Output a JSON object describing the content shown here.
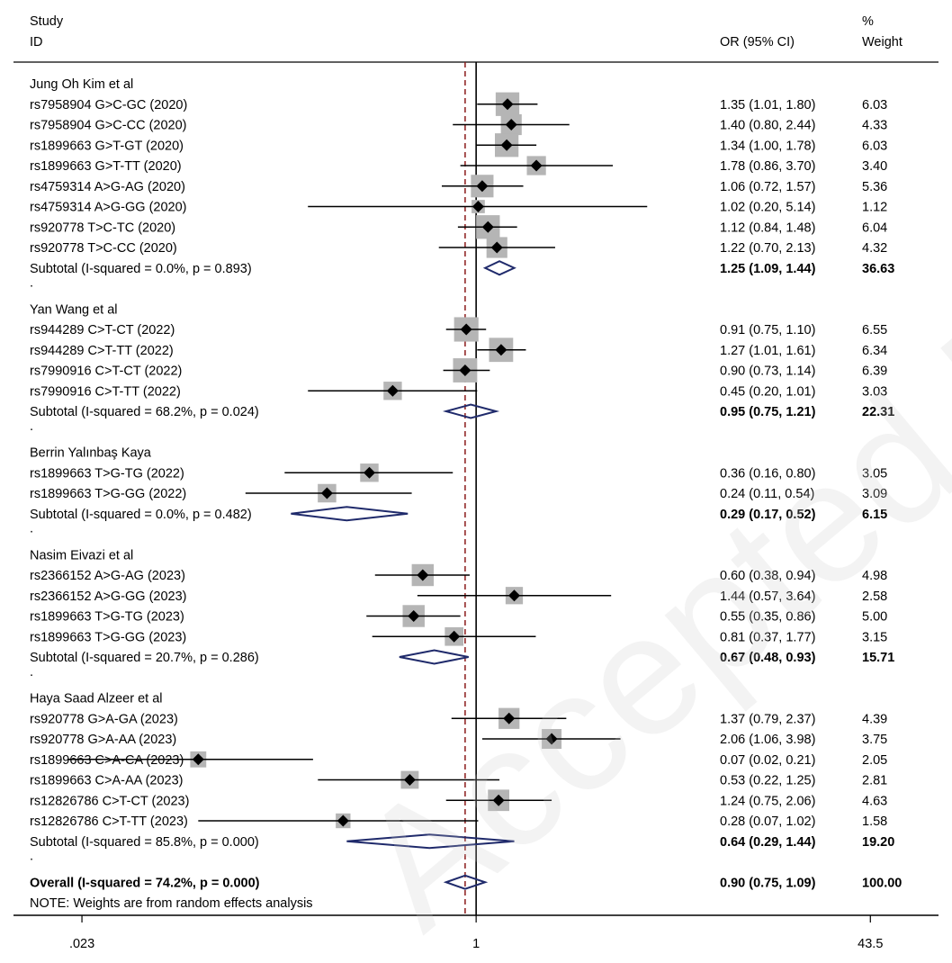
{
  "header": {
    "study_line1": "Study",
    "study_line2": "ID",
    "or_label": "OR (95% CI)",
    "weight_line1": "%",
    "weight_line2": "Weight"
  },
  "note": "NOTE: Weights are from random effects analysis",
  "watermark": "Accepted Manuscript",
  "colors": {
    "diamond": "#1f2a6b",
    "weight_box": "#b5b5b5",
    "null_line": "#000000",
    "overall_line": "#8b1a1a"
  },
  "chart_data": {
    "type": "forest",
    "measure": "OR (95% CI)",
    "x_scale": "log",
    "xlim": [
      0.0105,
      95
    ],
    "x_ticks": [
      {
        "value": 0.023,
        "label": ".023"
      },
      {
        "value": 1,
        "label": "1"
      },
      {
        "value": 43.5,
        "label": "43.5"
      }
    ],
    "null_value": 1,
    "overall_line_value": 0.9,
    "groups": [
      {
        "name": "Jung Oh Kim et al",
        "studies": [
          {
            "label": "rs7958904 G>C-GC (2020)",
            "or": 1.35,
            "lo": 1.01,
            "hi": 1.8,
            "ci_text": "1.35 (1.01, 1.80)",
            "weight": "6.03"
          },
          {
            "label": "rs7958904 G>C-CC (2020)",
            "or": 1.4,
            "lo": 0.8,
            "hi": 2.44,
            "ci_text": "1.40 (0.80, 2.44)",
            "weight": "4.33"
          },
          {
            "label": "rs1899663 G>T-GT (2020)",
            "or": 1.34,
            "lo": 1.0,
            "hi": 1.78,
            "ci_text": "1.34 (1.00, 1.78)",
            "weight": "6.03"
          },
          {
            "label": "rs1899663 G>T-TT (2020)",
            "or": 1.78,
            "lo": 0.86,
            "hi": 3.7,
            "ci_text": "1.78 (0.86, 3.70)",
            "weight": "3.40"
          },
          {
            "label": "rs4759314 A>G-AG (2020)",
            "or": 1.06,
            "lo": 0.72,
            "hi": 1.57,
            "ci_text": "1.06 (0.72, 1.57)",
            "weight": "5.36"
          },
          {
            "label": "rs4759314 A>G-GG (2020)",
            "or": 1.02,
            "lo": 0.2,
            "hi": 5.14,
            "ci_text": "1.02 (0.20, 5.14)",
            "weight": "1.12"
          },
          {
            "label": "rs920778 T>C-TC (2020)",
            "or": 1.12,
            "lo": 0.84,
            "hi": 1.48,
            "ci_text": "1.12 (0.84, 1.48)",
            "weight": "6.04"
          },
          {
            "label": "rs920778 T>C-CC (2020)",
            "or": 1.22,
            "lo": 0.7,
            "hi": 2.13,
            "ci_text": "1.22 (0.70, 2.13)",
            "weight": "4.32"
          }
        ],
        "subtotal": {
          "label": "Subtotal  (I-squared = 0.0%, p = 0.893)",
          "or": 1.25,
          "lo": 1.09,
          "hi": 1.44,
          "ci_text": "1.25 (1.09, 1.44)",
          "weight": "36.63"
        }
      },
      {
        "name": "Yan Wang et al",
        "studies": [
          {
            "label": "rs944289 C>T-CT (2022)",
            "or": 0.91,
            "lo": 0.75,
            "hi": 1.1,
            "ci_text": "0.91 (0.75, 1.10)",
            "weight": "6.55"
          },
          {
            "label": "rs944289 C>T-TT (2022)",
            "or": 1.27,
            "lo": 1.01,
            "hi": 1.61,
            "ci_text": "1.27 (1.01, 1.61)",
            "weight": "6.34"
          },
          {
            "label": "rs7990916 C>T-CT (2022)",
            "or": 0.9,
            "lo": 0.73,
            "hi": 1.14,
            "ci_text": "0.90 (0.73, 1.14)",
            "weight": "6.39"
          },
          {
            "label": "rs7990916 C>T-TT (2022)",
            "or": 0.45,
            "lo": 0.2,
            "hi": 1.01,
            "ci_text": "0.45 (0.20, 1.01)",
            "weight": "3.03"
          }
        ],
        "subtotal": {
          "label": "Subtotal  (I-squared = 68.2%, p = 0.024)",
          "or": 0.95,
          "lo": 0.75,
          "hi": 1.21,
          "ci_text": "0.95 (0.75, 1.21)",
          "weight": "22.31"
        }
      },
      {
        "name": "Berrin Yalınbaş Kaya",
        "studies": [
          {
            "label": "rs1899663 T>G-TG (2022)",
            "or": 0.36,
            "lo": 0.16,
            "hi": 0.8,
            "ci_text": "0.36 (0.16, 0.80)",
            "weight": "3.05"
          },
          {
            "label": "rs1899663 T>G-GG (2022)",
            "or": 0.24,
            "lo": 0.11,
            "hi": 0.54,
            "ci_text": "0.24 (0.11, 0.54)",
            "weight": "3.09"
          }
        ],
        "subtotal": {
          "label": "Subtotal  (I-squared = 0.0%, p = 0.482)",
          "or": 0.29,
          "lo": 0.17,
          "hi": 0.52,
          "ci_text": "0.29 (0.17, 0.52)",
          "weight": "6.15"
        }
      },
      {
        "name": "Nasim Eivazi et al",
        "studies": [
          {
            "label": "rs2366152 A>G-AG (2023)",
            "or": 0.6,
            "lo": 0.38,
            "hi": 0.94,
            "ci_text": "0.60 (0.38, 0.94)",
            "weight": "4.98"
          },
          {
            "label": "rs2366152 A>G-GG (2023)",
            "or": 1.44,
            "lo": 0.57,
            "hi": 3.64,
            "ci_text": "1.44 (0.57, 3.64)",
            "weight": "2.58"
          },
          {
            "label": "rs1899663 T>G-TG (2023)",
            "or": 0.55,
            "lo": 0.35,
            "hi": 0.86,
            "ci_text": "0.55 (0.35, 0.86)",
            "weight": "5.00"
          },
          {
            "label": "rs1899663 T>G-GG (2023)",
            "or": 0.81,
            "lo": 0.37,
            "hi": 1.77,
            "ci_text": "0.81 (0.37, 1.77)",
            "weight": "3.15"
          }
        ],
        "subtotal": {
          "label": "Subtotal  (I-squared = 20.7%, p = 0.286)",
          "or": 0.67,
          "lo": 0.48,
          "hi": 0.93,
          "ci_text": "0.67 (0.48, 0.93)",
          "weight": "15.71"
        }
      },
      {
        "name": "Haya Saad Alzeer et al",
        "studies": [
          {
            "label": "rs920778 G>A-GA (2023)",
            "or": 1.37,
            "lo": 0.79,
            "hi": 2.37,
            "ci_text": "1.37 (0.79, 2.37)",
            "weight": "4.39"
          },
          {
            "label": "rs920778 G>A-AA (2023)",
            "or": 2.06,
            "lo": 1.06,
            "hi": 3.98,
            "ci_text": "2.06 (1.06, 3.98)",
            "weight": "3.75"
          },
          {
            "label": "rs1899663 C>A-CA (2023)",
            "or": 0.07,
            "lo": 0.02,
            "hi": 0.21,
            "ci_text": "0.07 (0.02, 0.21)",
            "weight": "2.05"
          },
          {
            "label": "rs1899663 C>A-AA (2023)",
            "or": 0.53,
            "lo": 0.22,
            "hi": 1.25,
            "ci_text": "0.53 (0.22, 1.25)",
            "weight": "2.81"
          },
          {
            "label": "rs12826786 C>T-CT (2023)",
            "or": 1.24,
            "lo": 0.75,
            "hi": 2.06,
            "ci_text": "1.24 (0.75, 2.06)",
            "weight": "4.63"
          },
          {
            "label": "rs12826786 C>T-TT (2023)",
            "or": 0.28,
            "lo": 0.07,
            "hi": 1.02,
            "ci_text": "0.28 (0.07, 1.02)",
            "weight": "1.58"
          }
        ],
        "subtotal": {
          "label": "Subtotal  (I-squared = 85.8%, p = 0.000)",
          "or": 0.64,
          "lo": 0.29,
          "hi": 1.44,
          "ci_text": "0.64 (0.29, 1.44)",
          "weight": "19.20"
        }
      }
    ],
    "overall": {
      "label": "Overall  (I-squared = 74.2%, p = 0.000)",
      "or": 0.9,
      "lo": 0.75,
      "hi": 1.09,
      "ci_text": "0.90 (0.75, 1.09)",
      "weight": "100.00"
    }
  }
}
